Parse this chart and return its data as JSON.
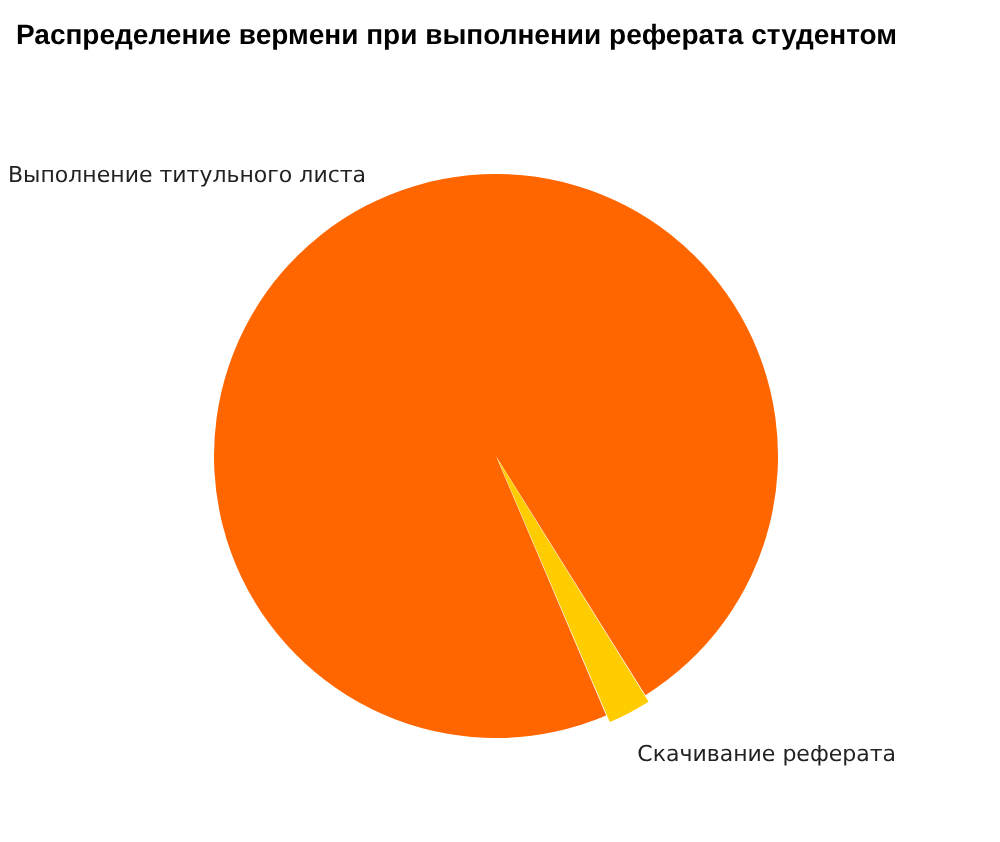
{
  "chart_data": {
    "type": "pie",
    "title": "Распределение вермени при выполнении реферата студентом",
    "categories": [
      "Выполнение титульного листа",
      "Скачивание реферата"
    ],
    "values": [
      97.5,
      2.5
    ],
    "colors": [
      "#ff6600",
      "#ffcc00"
    ],
    "legend": false
  }
}
